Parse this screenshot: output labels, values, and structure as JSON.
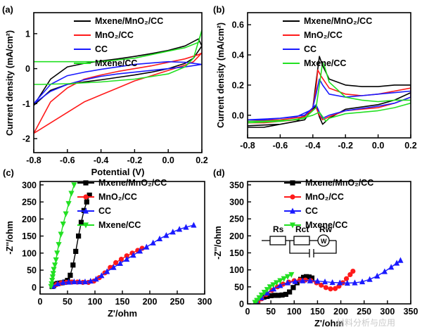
{
  "colors": {
    "black": "#000000",
    "red": "#ff1a1a",
    "blue": "#1a1aff",
    "green": "#22e022",
    "axis": "#000000"
  },
  "watermark": "材料分析与应用",
  "chart_data": [
    {
      "panel": "(a)",
      "type": "line",
      "xlabel": "Potential (V)",
      "ylabel": "Current density (mA/cm²)",
      "xlim": [
        -0.8,
        0.2
      ],
      "ylim": [
        -2.4,
        1.6
      ],
      "xticks": [
        -0.8,
        -0.6,
        -0.4,
        -0.2,
        0.0,
        0.2
      ],
      "xtick_labels": [
        "-0.8",
        "-0.6",
        "-0.4",
        "-0.2",
        "0.0",
        "0.2"
      ],
      "yticks": [
        -2,
        -1,
        0,
        1
      ],
      "ytick_labels": [
        "-2",
        "-1",
        "0",
        "1"
      ],
      "legend": [
        "Mxene/MnO₂/CC",
        "MnO₂/CC",
        "CC",
        "Mxene/CC"
      ],
      "series": [
        {
          "name": "Mxene/MnO₂/CC",
          "color": "black",
          "x": [
            -0.8,
            -0.7,
            -0.6,
            -0.5,
            -0.4,
            -0.3,
            -0.2,
            -0.1,
            0.0,
            0.1,
            0.15,
            0.2,
            0.18,
            0.1,
            0.0,
            -0.1,
            -0.2,
            -0.3,
            -0.4,
            -0.5,
            -0.6,
            -0.7,
            -0.8
          ],
          "y": [
            -1.05,
            -0.62,
            -0.45,
            -0.38,
            -0.32,
            -0.25,
            -0.18,
            -0.1,
            0.0,
            0.15,
            0.3,
            0.65,
            0.85,
            0.65,
            0.52,
            0.43,
            0.35,
            0.28,
            0.22,
            0.15,
            0.05,
            -0.3,
            -1.05
          ]
        },
        {
          "name": "MnO₂/CC",
          "color": "red",
          "x": [
            -0.8,
            -0.7,
            -0.6,
            -0.5,
            -0.4,
            -0.3,
            -0.2,
            -0.1,
            0.0,
            0.1,
            0.15,
            0.2,
            0.18,
            0.1,
            0.0,
            -0.1,
            -0.2,
            -0.3,
            -0.4,
            -0.5,
            -0.6,
            -0.7,
            -0.8
          ],
          "y": [
            -1.85,
            -1.55,
            -1.25,
            -0.95,
            -0.75,
            -0.55,
            -0.35,
            -0.2,
            -0.05,
            0.1,
            0.2,
            0.45,
            0.4,
            0.28,
            0.18,
            0.08,
            0.0,
            -0.08,
            -0.18,
            -0.3,
            -0.55,
            -0.95,
            -1.85
          ]
        },
        {
          "name": "CC",
          "color": "blue",
          "x": [
            -0.8,
            -0.7,
            -0.6,
            -0.5,
            -0.4,
            -0.3,
            -0.2,
            -0.1,
            0.0,
            0.1,
            0.2,
            0.1,
            0.0,
            -0.1,
            -0.2,
            -0.3,
            -0.4,
            -0.5,
            -0.6,
            -0.7,
            -0.8
          ],
          "y": [
            -1.0,
            -0.65,
            -0.45,
            -0.32,
            -0.22,
            -0.15,
            -0.1,
            -0.05,
            0.0,
            0.05,
            0.12,
            0.18,
            0.2,
            0.16,
            0.12,
            0.05,
            -0.02,
            -0.1,
            -0.2,
            -0.45,
            -1.0
          ]
        },
        {
          "name": "Mxene/CC",
          "color": "green",
          "x": [
            -0.8,
            -0.75,
            -0.6,
            -0.4,
            -0.2,
            0.0,
            0.1,
            0.15,
            0.2,
            0.18,
            0.1,
            0.0,
            -0.2,
            -0.4,
            -0.6,
            -0.75,
            -0.8
          ],
          "y": [
            -0.45,
            -0.45,
            -0.43,
            -0.38,
            -0.3,
            -0.15,
            0.05,
            0.3,
            1.1,
            0.75,
            0.6,
            0.5,
            0.3,
            0.2,
            0.2,
            0.2,
            0.2
          ]
        }
      ]
    },
    {
      "panel": "(b)",
      "type": "line",
      "xlabel": "",
      "ylabel": "Current density (mA/cm²)",
      "xlim": [
        -0.8,
        0.2
      ],
      "ylim": [
        -0.15,
        0.68
      ],
      "xticks": [
        -0.8,
        -0.6,
        -0.4,
        -0.2,
        0.0,
        0.2
      ],
      "xtick_labels": [
        "-0.8",
        "-0.6",
        "-0.4",
        "-0.2",
        "0.0",
        "0.2"
      ],
      "yticks": [
        0.0,
        0.2,
        0.4,
        0.6
      ],
      "ytick_labels": [
        "0.0",
        "0.2",
        "0.4",
        "0.6"
      ],
      "legend": [
        "Mxene/MnO₂/CC",
        "MnO₂/CC",
        "CC",
        "Mxene/CC"
      ],
      "series": [
        {
          "name": "Mxene/MnO₂/CC",
          "color": "black",
          "x": [
            -0.8,
            -0.6,
            -0.45,
            -0.4,
            -0.38,
            -0.36,
            -0.34,
            -0.3,
            -0.2,
            -0.1,
            0.0,
            0.1,
            0.2,
            0.2,
            0.1,
            0.0,
            -0.2,
            -0.3,
            -0.34,
            -0.36,
            -0.38,
            -0.42,
            -0.5,
            -0.7,
            -0.8
          ],
          "y": [
            -0.07,
            -0.06,
            -0.03,
            0.05,
            0.22,
            0.39,
            0.33,
            0.24,
            0.2,
            0.19,
            0.19,
            0.2,
            0.2,
            0.15,
            0.1,
            0.07,
            0.04,
            -0.02,
            -0.06,
            -0.01,
            0.06,
            0.02,
            -0.04,
            -0.08,
            -0.08
          ]
        },
        {
          "name": "MnO₂/CC",
          "color": "red",
          "x": [
            -0.8,
            -0.6,
            -0.45,
            -0.4,
            -0.38,
            -0.37,
            -0.35,
            -0.3,
            -0.2,
            -0.1,
            0.0,
            0.1,
            0.2,
            0.2,
            0.1,
            0.0,
            -0.2,
            -0.3,
            -0.34,
            -0.36,
            -0.38,
            -0.42,
            -0.5,
            -0.7,
            -0.8
          ],
          "y": [
            -0.04,
            -0.03,
            -0.01,
            0.05,
            0.18,
            0.3,
            0.26,
            0.18,
            0.14,
            0.13,
            0.14,
            0.16,
            0.18,
            0.12,
            0.08,
            0.05,
            0.03,
            -0.01,
            -0.03,
            0.0,
            0.05,
            0.02,
            -0.03,
            -0.05,
            -0.05
          ]
        },
        {
          "name": "CC",
          "color": "blue",
          "x": [
            -0.8,
            -0.6,
            -0.45,
            -0.4,
            -0.38,
            -0.36,
            -0.34,
            -0.3,
            -0.2,
            -0.1,
            0.0,
            0.1,
            0.2,
            0.2,
            0.1,
            0.0,
            -0.2,
            -0.3,
            -0.34,
            -0.36,
            -0.38,
            -0.42,
            -0.5,
            -0.7,
            -0.8
          ],
          "y": [
            -0.03,
            -0.02,
            0.0,
            0.05,
            0.14,
            0.24,
            0.2,
            0.14,
            0.12,
            0.13,
            0.14,
            0.15,
            0.16,
            0.12,
            0.08,
            0.06,
            0.03,
            0.0,
            -0.02,
            0.02,
            0.07,
            0.03,
            -0.01,
            -0.03,
            -0.03
          ]
        },
        {
          "name": "Mxene/CC",
          "color": "green",
          "x": [
            -0.8,
            -0.6,
            -0.45,
            -0.38,
            -0.36,
            -0.34,
            -0.33,
            -0.3,
            -0.2,
            -0.1,
            0.0,
            0.1,
            0.2,
            0.2,
            0.1,
            0.0,
            -0.2,
            -0.3,
            -0.32,
            -0.34,
            -0.36,
            -0.4,
            -0.5,
            -0.7,
            -0.8
          ],
          "y": [
            -0.05,
            -0.04,
            -0.02,
            0.05,
            0.2,
            0.35,
            0.33,
            0.22,
            0.12,
            0.1,
            0.09,
            0.1,
            0.1,
            0.08,
            0.05,
            0.03,
            0.01,
            -0.02,
            -0.04,
            -0.01,
            0.02,
            0.0,
            -0.03,
            -0.04,
            -0.04
          ]
        }
      ]
    },
    {
      "panel": "(c)",
      "type": "scatter",
      "xlabel": "Z'/ohm",
      "ylabel": "-Z''/ohm",
      "xlim": [
        0,
        300
      ],
      "ylim": [
        -20,
        310
      ],
      "xticks": [
        0,
        50,
        100,
        150,
        200,
        250,
        300
      ],
      "xtick_labels": [
        "0",
        "50",
        "100",
        "150",
        "200",
        "250",
        "300"
      ],
      "yticks": [
        0,
        50,
        100,
        150,
        200,
        250,
        300
      ],
      "ytick_labels": [
        "0",
        "50",
        "100",
        "150",
        "200",
        "250",
        "300"
      ],
      "legend": [
        "Mxene/MnO₂/CC",
        "MnO₂/CC",
        "CC",
        "Mxene/CC"
      ],
      "series": [
        {
          "name": "Mxene/MnO₂/CC",
          "color": "black",
          "marker": "square",
          "x": [
            22,
            25,
            28,
            32,
            36,
            40,
            45,
            50,
            55,
            60,
            65,
            70,
            75,
            80,
            85,
            90
          ],
          "y": [
            2,
            6,
            9,
            11,
            12,
            13,
            15,
            20,
            35,
            65,
            105,
            150,
            190,
            225,
            250,
            270
          ]
        },
        {
          "name": "MnO₂/CC",
          "color": "red",
          "marker": "circle",
          "x": [
            24,
            30,
            38,
            48,
            58,
            68,
            78,
            88,
            98,
            108,
            118,
            128,
            138,
            148,
            158,
            168,
            178,
            186
          ],
          "y": [
            3,
            8,
            12,
            14,
            15,
            15,
            14,
            14,
            18,
            28,
            42,
            58,
            72,
            82,
            92,
            100,
            108,
            114
          ]
        },
        {
          "name": "CC",
          "color": "blue",
          "marker": "triangle",
          "x": [
            24,
            32,
            42,
            52,
            62,
            72,
            82,
            92,
            102,
            112,
            122,
            134,
            146,
            158,
            170,
            182,
            194,
            206,
            218,
            230,
            242,
            254,
            266,
            280
          ],
          "y": [
            3,
            10,
            14,
            15,
            16,
            16,
            16,
            18,
            24,
            34,
            46,
            58,
            70,
            82,
            94,
            106,
            118,
            130,
            142,
            152,
            162,
            170,
            176,
            182
          ]
        },
        {
          "name": "Mxene/CC",
          "color": "green",
          "marker": "triangle-down",
          "x": [
            20,
            21,
            22,
            23,
            24,
            25,
            27,
            29,
            31,
            34,
            38,
            42,
            47,
            52,
            57,
            62
          ],
          "y": [
            2,
            10,
            20,
            30,
            40,
            52,
            65,
            80,
            100,
            125,
            155,
            185,
            215,
            245,
            275,
            300
          ]
        }
      ]
    },
    {
      "panel": "(d)",
      "type": "scatter",
      "xlabel": "Z'/ohm",
      "ylabel": "-Z''/ohm",
      "xlim": [
        0,
        350
      ],
      "ylim": [
        0,
        360
      ],
      "xticks": [
        0,
        50,
        100,
        150,
        200,
        250,
        300,
        350
      ],
      "xtick_labels": [
        "0",
        "50",
        "100",
        "150",
        "200",
        "250",
        "300",
        "350"
      ],
      "yticks": [
        0,
        50,
        100,
        150,
        200,
        250,
        300,
        350
      ],
      "ytick_labels": [
        "0",
        "50",
        "100",
        "150",
        "200",
        "250",
        "300",
        "350"
      ],
      "legend": [
        "Mxene/MnO₂/CC",
        "MnO₂/CC",
        "CC",
        "Mxene/CC"
      ],
      "circuit_labels": [
        "Rs",
        "Rct",
        "Rw",
        "W"
      ],
      "series": [
        {
          "name": "Mxene/MnO₂/CC",
          "color": "black",
          "marker": "square",
          "x": [
            18,
            22,
            28,
            35,
            42,
            50,
            58,
            66,
            74,
            82,
            90,
            98,
            106,
            114,
            120,
            126,
            132,
            138
          ],
          "y": [
            4,
            10,
            16,
            20,
            22,
            24,
            25,
            25,
            26,
            28,
            35,
            48,
            62,
            72,
            78,
            80,
            79,
            76
          ]
        },
        {
          "name": "MnO₂/CC",
          "color": "red",
          "marker": "circle",
          "x": [
            22,
            30,
            40,
            52,
            64,
            76,
            88,
            100,
            112,
            124,
            136,
            148,
            158,
            168,
            178,
            188,
            196,
            204,
            212,
            220,
            226
          ],
          "y": [
            5,
            15,
            28,
            40,
            50,
            58,
            64,
            68,
            70,
            70,
            68,
            62,
            55,
            48,
            44,
            45,
            52,
            62,
            74,
            86,
            96
          ]
        },
        {
          "name": "CC",
          "color": "blue",
          "marker": "triangle",
          "x": [
            20,
            30,
            42,
            56,
            70,
            86,
            102,
            118,
            134,
            150,
            166,
            182,
            198,
            214,
            230,
            246,
            262,
            278,
            294,
            308,
            320,
            328
          ],
          "y": [
            5,
            18,
            32,
            44,
            54,
            62,
            66,
            68,
            68,
            67,
            65,
            63,
            62,
            61,
            62,
            65,
            72,
            82,
            95,
            108,
            120,
            128
          ]
        },
        {
          "name": "Mxene/CC",
          "color": "green",
          "marker": "triangle-down",
          "x": [
            16,
            20,
            25,
            30,
            36,
            42,
            48,
            55,
            62,
            70,
            78,
            86,
            94
          ],
          "y": [
            4,
            10,
            18,
            26,
            34,
            42,
            50,
            56,
            62,
            68,
            74,
            80,
            86
          ]
        }
      ]
    }
  ]
}
